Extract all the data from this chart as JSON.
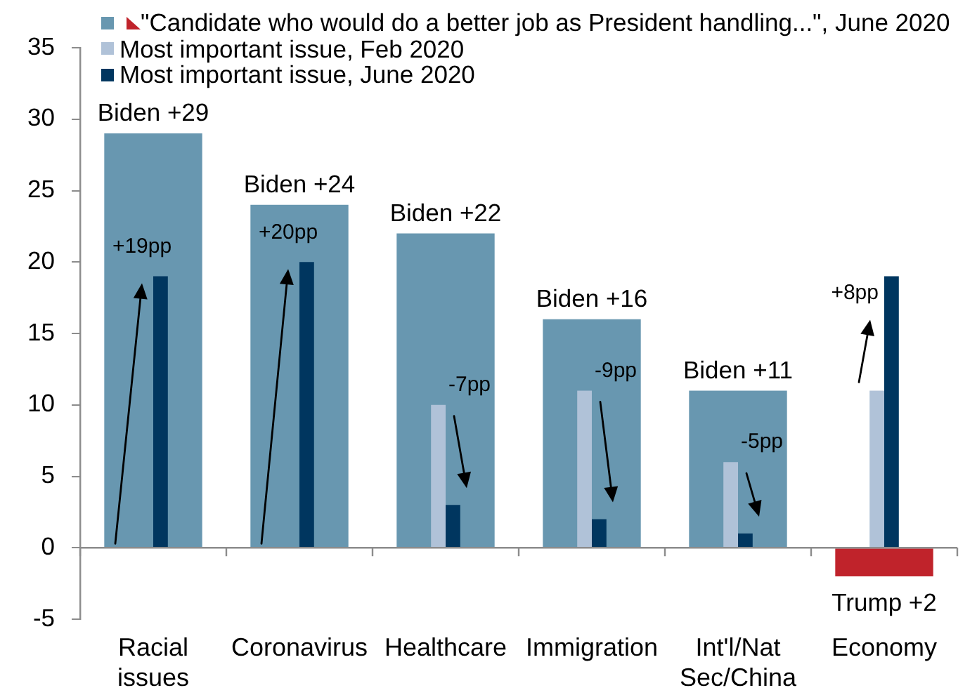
{
  "chart_data": {
    "type": "bar",
    "categories": [
      "Racial issues",
      "Coronavirus",
      "Healthcare",
      "Immigration",
      "Int'l/Nat Sec/China",
      "Economy"
    ],
    "series": [
      {
        "name": "\"Candidate who would do a better job as President handling...\", June 2020",
        "color": "#6897b0",
        "colors": [
          "#6897b0",
          "#6897b0",
          "#6897b0",
          "#6897b0",
          "#6897b0",
          "#c0232b"
        ],
        "values": [
          29,
          24,
          22,
          16,
          11,
          -2
        ],
        "value_labels": [
          "Biden +29",
          "Biden +24",
          "Biden +22",
          "Biden +16",
          "Biden +11",
          null
        ]
      },
      {
        "name": "Most important issue, Feb 2020",
        "color": "#b0c2d8",
        "values": [
          0,
          0,
          10,
          11,
          6,
          11
        ]
      },
      {
        "name": "Most important issue, June 2020",
        "color": "#00365f",
        "values": [
          19,
          20,
          3,
          2,
          1,
          19
        ]
      }
    ],
    "ylim": [
      -5,
      35
    ],
    "yticks": [
      -5,
      0,
      5,
      10,
      15,
      20,
      25,
      30,
      35
    ],
    "legend": "top",
    "annotations": [
      "+19pp",
      "+20pp",
      "-7pp",
      "-9pp",
      "-5pp",
      "+8pp",
      {
        "text": "Trump +2",
        "x": "Economy",
        "y": -2
      }
    ]
  }
}
